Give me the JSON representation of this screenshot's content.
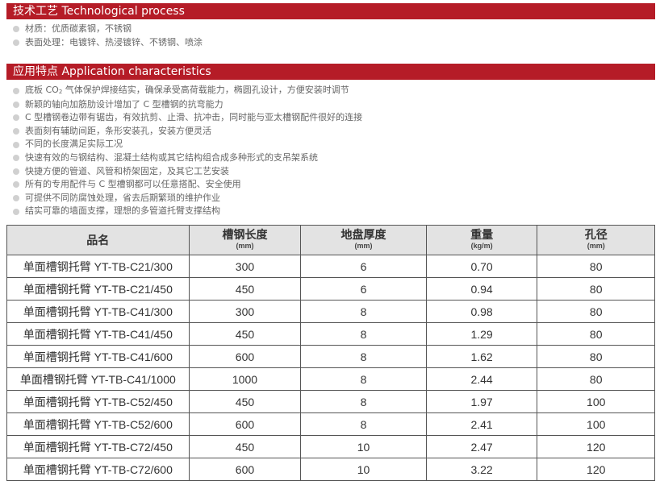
{
  "section1": {
    "title": "技术工艺 Technological process",
    "items": [
      "材质：优质碳素钢，不锈钢",
      "表面处理：电镀锌、热浸镀锌、不锈钢、喷涂"
    ]
  },
  "section2": {
    "title": "应用特点 Application characteristics",
    "first_item": {
      "before": "底板 CO",
      "sub": "2",
      "after": " 气体保护焊接结实，确保承受高荷载能力，椭圆孔设计，方便安装时调节"
    },
    "items": [
      "新颖的轴向加筋肋设计增加了 C 型槽钢的抗弯能力",
      "C 型槽钢卷边带有锯齿，有效抗剪、止滑、抗冲击，同时能与亚太槽钢配件很好的连接",
      "表面刻有辅助间距，条形安装孔，安装方便灵活",
      "不同的长度满足实际工况",
      "快速有效的与钢结构、混凝土结构或其它结构组合成多种形式的支吊架系统",
      "快捷方便的管道、风管和桥架固定，及其它工艺安装",
      "所有的专用配件与 C 型槽钢都可以任意搭配、安全使用",
      "可提供不同防腐蚀处理，省去后期繁琐的维护作业",
      "结实可靠的墙面支撑，理想的多管道托臂支撑结构"
    ]
  },
  "table": {
    "headers": [
      {
        "label": "品名",
        "unit": ""
      },
      {
        "label": "槽钢长度",
        "unit": "(mm)"
      },
      {
        "label": "地盘厚度",
        "unit": "(mm)"
      },
      {
        "label": "重量",
        "unit": "(kg/m)"
      },
      {
        "label": "孔径",
        "unit": "(mm)"
      }
    ],
    "rows": [
      [
        "单面槽钢托臂 YT-TB-C21/300",
        "300",
        "6",
        "0.70",
        "80"
      ],
      [
        "单面槽钢托臂 YT-TB-C21/450",
        "450",
        "6",
        "0.94",
        "80"
      ],
      [
        "单面槽钢托臂 YT-TB-C41/300",
        "300",
        "8",
        "0.98",
        "80"
      ],
      [
        "单面槽钢托臂 YT-TB-C41/450",
        "450",
        "8",
        "1.29",
        "80"
      ],
      [
        "单面槽钢托臂 YT-TB-C41/600",
        "600",
        "8",
        "1.62",
        "80"
      ],
      [
        "单面槽钢托臂 YT-TB-C41/1000",
        "1000",
        "8",
        "2.44",
        "80"
      ],
      [
        "单面槽钢托臂 YT-TB-C52/450",
        "450",
        "8",
        "1.97",
        "100"
      ],
      [
        "单面槽钢托臂 YT-TB-C52/600",
        "600",
        "8",
        "2.41",
        "100"
      ],
      [
        "单面槽钢托臂 YT-TB-C72/450",
        "450",
        "10",
        "2.47",
        "120"
      ],
      [
        "单面槽钢托臂 YT-TB-C72/600",
        "600",
        "10",
        "3.22",
        "120"
      ]
    ]
  },
  "colors": {
    "header_bar": "#b51c27",
    "table_header_bg": "#e3e3e3"
  }
}
